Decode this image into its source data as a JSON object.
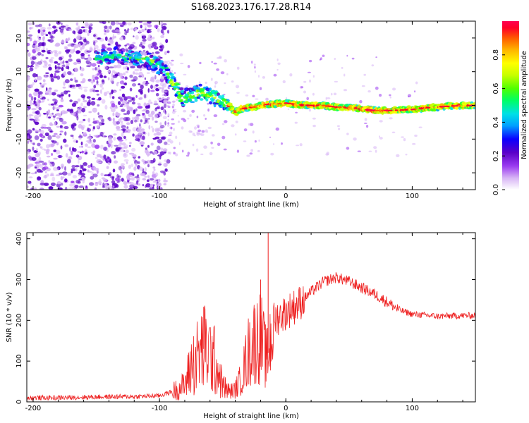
{
  "title": "S168.2023.176.17.28.R14",
  "chart_data": [
    {
      "type": "heatmap",
      "name": "spectrogram",
      "xlabel": "Height of straight line (km)",
      "ylabel": "Frequency (Hz)",
      "xlim": [
        -205,
        150
      ],
      "ylim": [
        -25,
        25
      ],
      "xticks": [
        -200,
        -100,
        0,
        100
      ],
      "yticks": [
        -20,
        -10,
        0,
        10,
        20
      ],
      "colorbar": {
        "label": "Normalized spectral amplitude",
        "range": [
          0,
          1
        ],
        "ticks": [
          0.0,
          0.2,
          0.4,
          0.6,
          0.8
        ],
        "colormap": [
          "#ffffff",
          "#d7b4f5",
          "#9b3cf0",
          "#5a00c8",
          "#0a00ff",
          "#00a0ff",
          "#00e0e6",
          "#00ff64",
          "#50ff00",
          "#c8ff00",
          "#ffff00",
          "#ffb400",
          "#ff5a00",
          "#ff0028",
          "#ff0050"
        ]
      },
      "trace": {
        "x": [
          -150,
          -135,
          -120,
          -105,
          -95,
          -88,
          -82,
          -75,
          -68,
          -60,
          -52,
          -45,
          -40,
          -35,
          -25,
          -15,
          -5,
          0,
          10,
          20,
          30,
          40,
          55,
          70,
          85,
          100,
          115,
          130,
          150
        ],
        "y": [
          14,
          15,
          14,
          13,
          10,
          6,
          2,
          3,
          4,
          3,
          1.5,
          0,
          -2,
          -1,
          -0.5,
          0.3,
          0.5,
          0.7,
          0.2,
          0,
          0,
          -0.5,
          -0.8,
          -1.5,
          -1.5,
          -1.2,
          -0.6,
          -0.2,
          0
        ]
      },
      "noise_extent_x": [
        -205,
        -93
      ],
      "noise_extent_y": [
        -25,
        25
      ]
    },
    {
      "type": "line",
      "name": "snr",
      "xlabel": "Height of straight line (km)",
      "ylabel": "SNR (10 * v/v)",
      "xlim": [
        -205,
        150
      ],
      "ylim": [
        0,
        415
      ],
      "xticks": [
        -200,
        -100,
        0,
        100
      ],
      "yticks": [
        0,
        100,
        200,
        300,
        400
      ],
      "color": "#ee2020",
      "series": [
        {
          "x": [
            -205,
            -180,
            -150,
            -120,
            -100,
            -90,
            -80,
            -75,
            -70,
            -65,
            -60,
            -55,
            -50,
            -45,
            -40,
            -35,
            -30,
            -25,
            -20,
            -15,
            -10,
            -5,
            0,
            10,
            20,
            30,
            40,
            50,
            60,
            70,
            80,
            90,
            100,
            120,
            150
          ],
          "y": [
            10,
            10,
            12,
            13,
            15,
            25,
            40,
            90,
            110,
            130,
            120,
            90,
            40,
            25,
            30,
            60,
            120,
            150,
            160,
            100,
            200,
            210,
            220,
            240,
            270,
            295,
            305,
            295,
            280,
            265,
            245,
            225,
            215,
            210,
            212
          ]
        }
      ],
      "spikes": [
        {
          "x": -14,
          "y": 415
        },
        {
          "x": -20,
          "y": 300
        },
        {
          "x": -65,
          "y": 233
        }
      ]
    }
  ]
}
